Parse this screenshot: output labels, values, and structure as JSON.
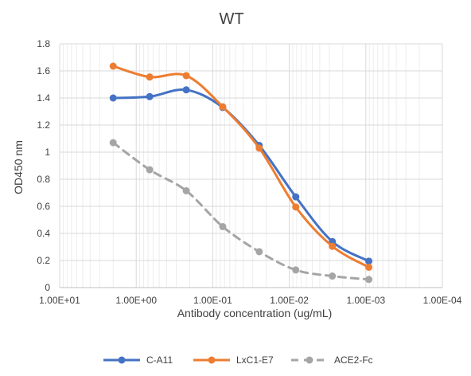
{
  "chart_data": {
    "type": "line",
    "title": "WT",
    "xlabel": "Antibody concentration (ug/mL)",
    "ylabel": "OD450 nm",
    "x_scale": "log, reversed",
    "xlim": [
      10,
      0.0001
    ],
    "ylim": [
      0,
      1.8
    ],
    "grid": true,
    "legend_position": "bottom",
    "x_ticks": [
      "1.00E+01",
      "1.00E+00",
      "1.00E-01",
      "1.00E-02",
      "1.00E-03",
      "1.00E-04"
    ],
    "y_ticks": [
      "0",
      "0.2",
      "0.4",
      "0.6",
      "0.8",
      "1",
      "1.2",
      "1.4",
      "1.6",
      "1.8"
    ],
    "x": [
      2,
      0.667,
      0.222,
      0.0741,
      0.0247,
      0.00823,
      0.00274,
      0.000914
    ],
    "series": [
      {
        "name": "C-A11",
        "color": "#4472C4",
        "style": "solid",
        "values": [
          1.4,
          1.41,
          1.46,
          1.33,
          1.05,
          0.67,
          0.34,
          0.195
        ]
      },
      {
        "name": "LxC1-E7",
        "color": "#ED7D31",
        "style": "solid",
        "values": [
          1.635,
          1.555,
          1.565,
          1.335,
          1.03,
          0.595,
          0.305,
          0.15
        ]
      },
      {
        "name": "ACE2-Fc",
        "color": "#A5A5A5",
        "style": "dashed",
        "values": [
          1.07,
          0.87,
          0.715,
          0.45,
          0.265,
          0.13,
          0.085,
          0.06
        ]
      }
    ]
  }
}
